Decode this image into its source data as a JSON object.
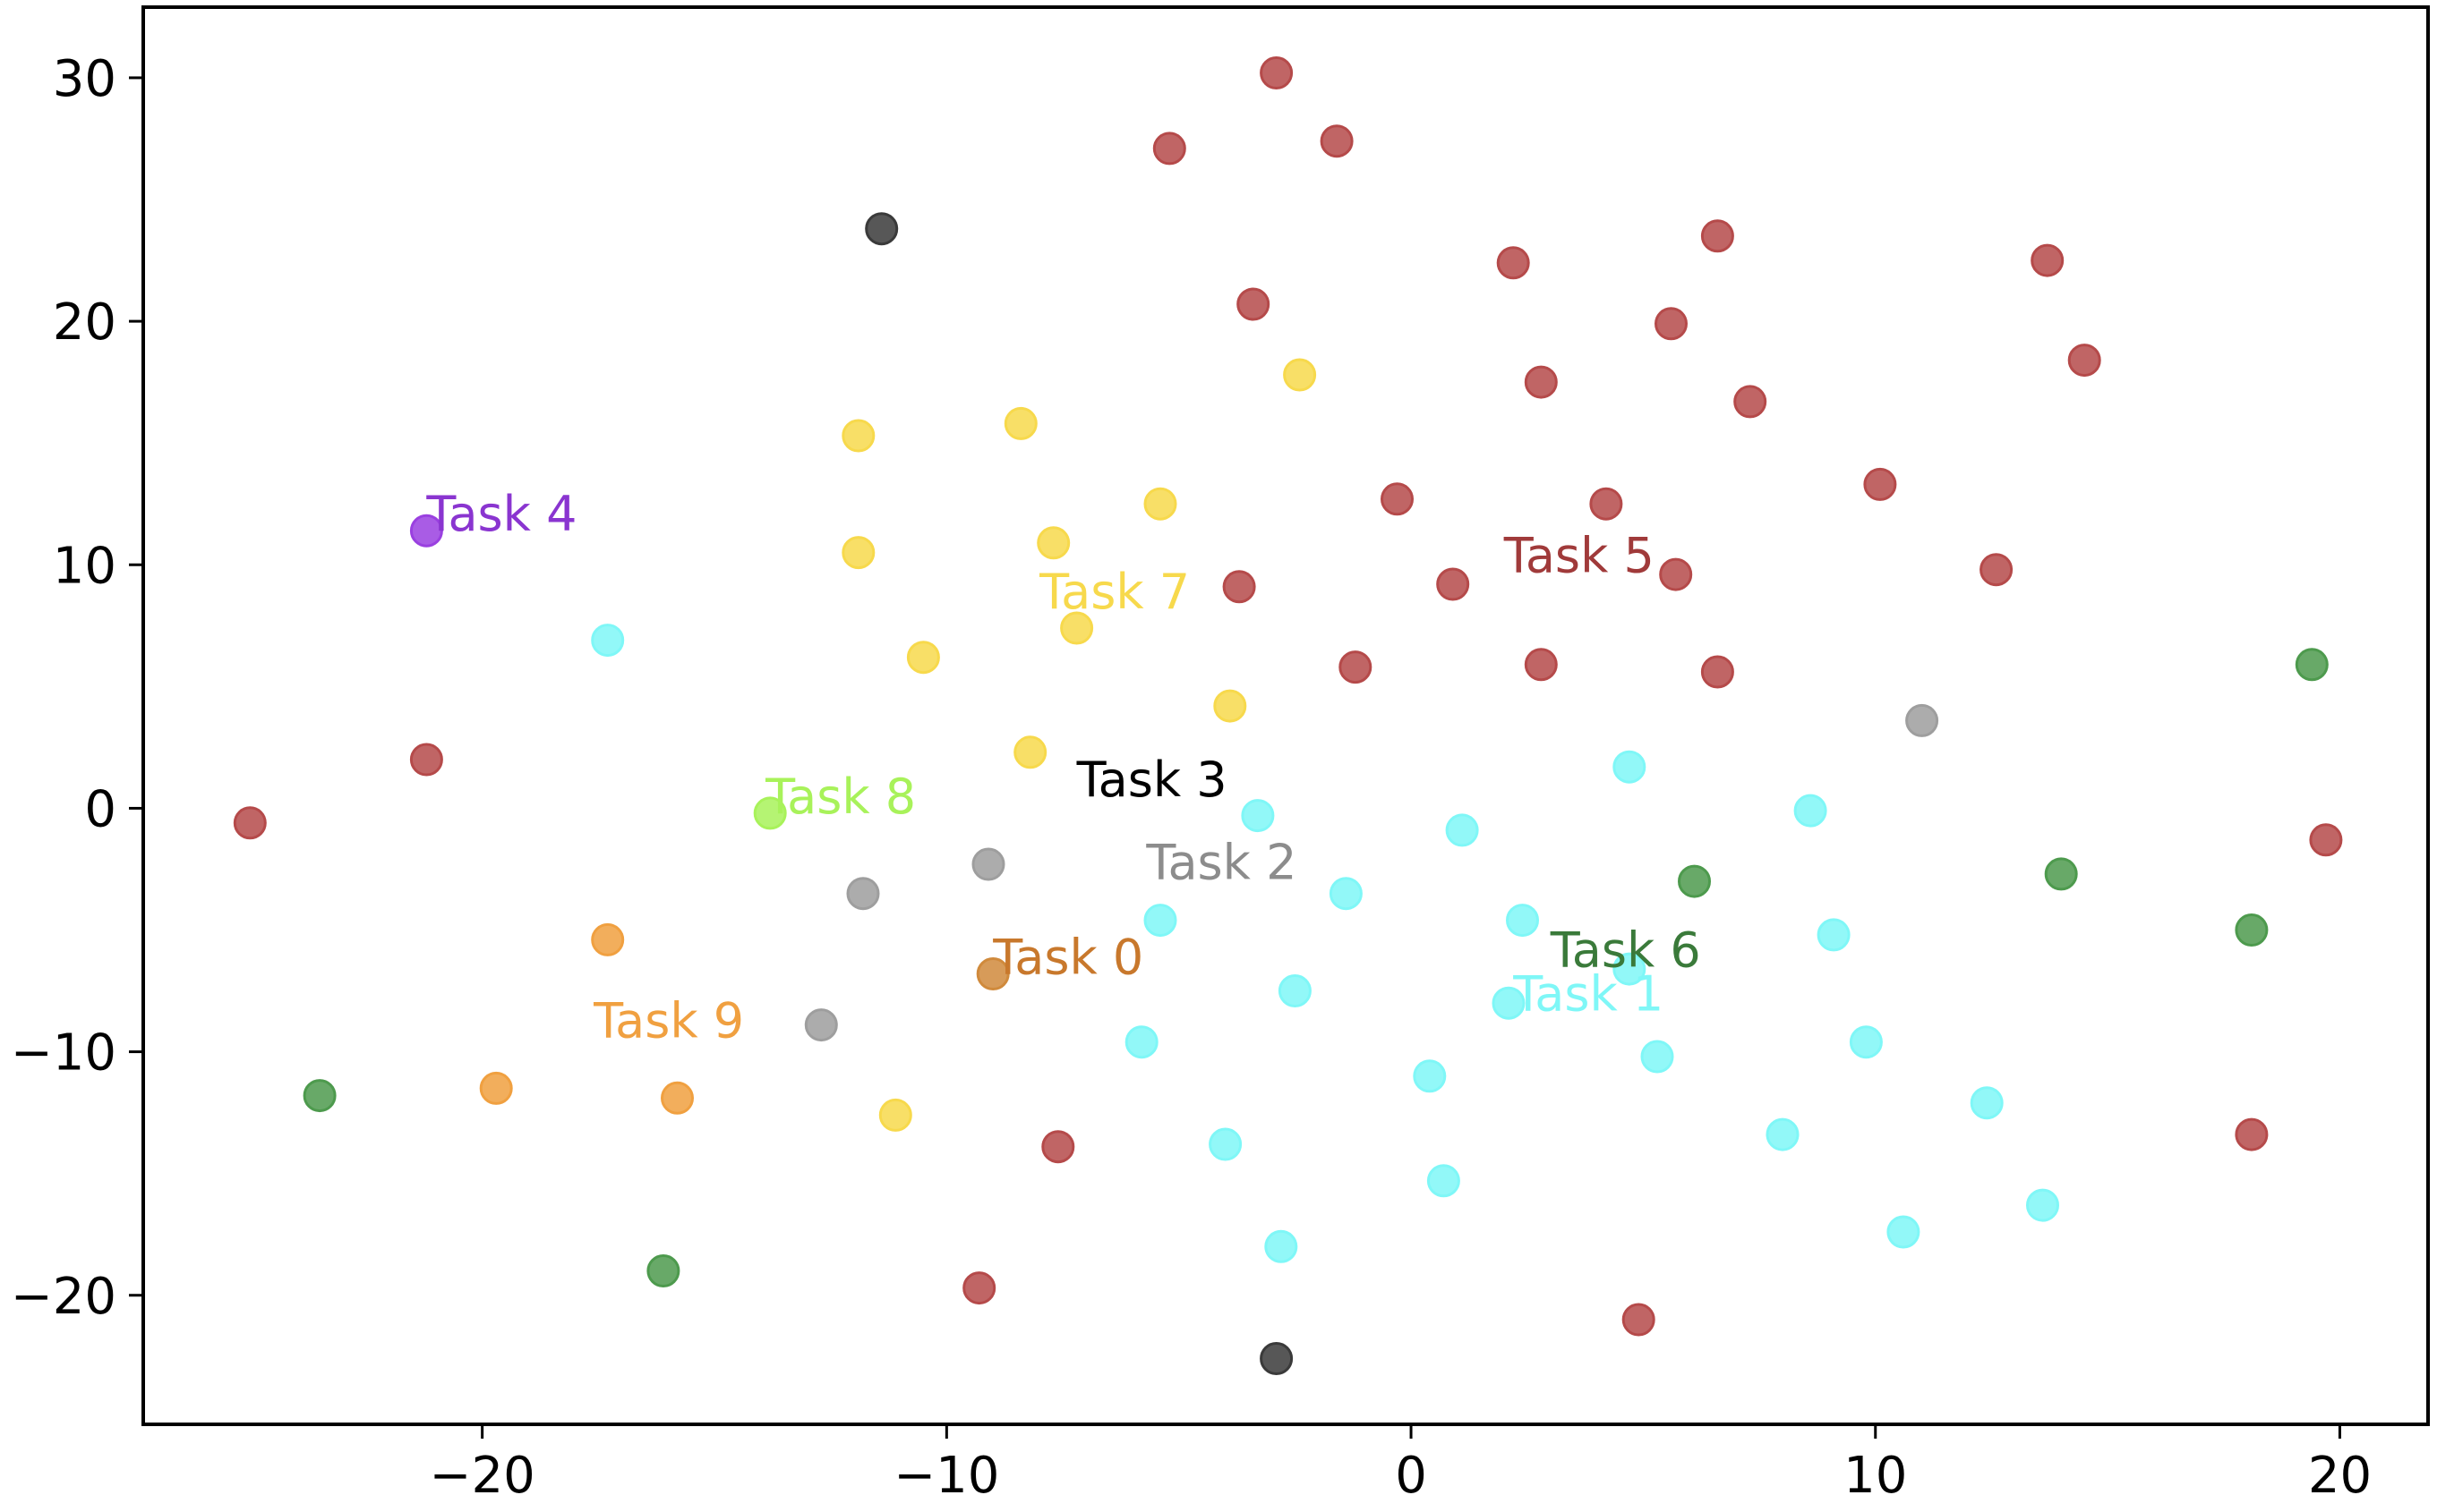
{
  "chart_data": {
    "type": "scatter",
    "title": "",
    "xlabel": "",
    "ylabel": "",
    "xlim": [
      -27.3,
      21.9
    ],
    "ylim": [
      -25.3,
      32.9
    ],
    "xticks": [
      -20,
      -10,
      0,
      10,
      20
    ],
    "yticks": [
      -20,
      -10,
      0,
      10,
      20,
      30
    ],
    "xtick_labels": [
      "−20",
      "−10",
      "0",
      "10",
      "20"
    ],
    "ytick_labels": [
      "−20",
      "−10",
      "0",
      "10",
      "20",
      "30"
    ],
    "grid": false,
    "legend": "none",
    "series": [
      {
        "color": "#d08a3c",
        "points": [
          [
            -9.0,
            -6.8
          ]
        ]
      },
      {
        "color": "#7ff7f7",
        "points": [
          [
            -17.3,
            6.9
          ],
          [
            -3.3,
            -0.3
          ],
          [
            1.1,
            -0.9
          ],
          [
            4.7,
            1.7
          ],
          [
            8.6,
            -0.1
          ],
          [
            -5.4,
            -4.6
          ],
          [
            -1.4,
            -3.5
          ],
          [
            2.4,
            -4.6
          ],
          [
            9.1,
            -5.2
          ],
          [
            -2.5,
            -7.5
          ],
          [
            2.1,
            -8.0
          ],
          [
            4.7,
            -6.6
          ],
          [
            -5.8,
            -9.6
          ],
          [
            0.4,
            -11.0
          ],
          [
            5.3,
            -10.2
          ],
          [
            9.8,
            -9.6
          ],
          [
            12.4,
            -12.1
          ],
          [
            -4.0,
            -13.8
          ],
          [
            0.7,
            -15.3
          ],
          [
            8.0,
            -13.4
          ],
          [
            -2.8,
            -18.0
          ],
          [
            10.6,
            -17.4
          ],
          [
            13.6,
            -16.3
          ]
        ]
      },
      {
        "color": "#9e9e9e",
        "points": [
          [
            -9.1,
            -2.3
          ],
          [
            -11.8,
            -3.5
          ],
          [
            -12.7,
            -8.9
          ],
          [
            11.0,
            3.6
          ]
        ]
      },
      {
        "color": "#3a3a3a",
        "points": [
          [
            -11.4,
            23.8
          ],
          [
            -2.9,
            -22.6
          ]
        ]
      },
      {
        "color": "#9a40e0",
        "points": [
          [
            -21.2,
            11.4
          ]
        ]
      },
      {
        "color": "#b54a4a",
        "points": [
          [
            -2.9,
            30.2
          ],
          [
            -5.2,
            27.1
          ],
          [
            -1.6,
            27.4
          ],
          [
            -3.4,
            20.7
          ],
          [
            2.2,
            22.4
          ],
          [
            6.6,
            23.5
          ],
          [
            13.7,
            22.5
          ],
          [
            5.6,
            19.9
          ],
          [
            2.8,
            17.5
          ],
          [
            7.3,
            16.7
          ],
          [
            14.5,
            18.4
          ],
          [
            10.1,
            13.3
          ],
          [
            -0.3,
            12.7
          ],
          [
            4.2,
            12.5
          ],
          [
            0.9,
            9.2
          ],
          [
            5.7,
            9.6
          ],
          [
            12.6,
            9.8
          ],
          [
            -3.7,
            9.1
          ],
          [
            -1.2,
            5.8
          ],
          [
            2.8,
            5.9
          ],
          [
            6.6,
            5.6
          ],
          [
            -21.2,
            2.0
          ],
          [
            -25.0,
            -0.6
          ],
          [
            19.7,
            -1.3
          ],
          [
            -7.6,
            -13.9
          ],
          [
            18.1,
            -13.4
          ],
          [
            -9.3,
            -19.7
          ],
          [
            4.9,
            -21.0
          ]
        ]
      },
      {
        "color": "#4d9a4d",
        "points": [
          [
            19.4,
            5.9
          ],
          [
            6.1,
            -3.0
          ],
          [
            14.0,
            -2.7
          ],
          [
            18.1,
            -5.0
          ],
          [
            -23.5,
            -11.8
          ],
          [
            -16.1,
            -19.0
          ]
        ]
      },
      {
        "color": "#f7d94c",
        "points": [
          [
            -2.4,
            17.8
          ],
          [
            -8.4,
            15.8
          ],
          [
            -11.9,
            15.3
          ],
          [
            -5.4,
            12.5
          ],
          [
            -7.7,
            10.9
          ],
          [
            -11.9,
            10.5
          ],
          [
            -7.2,
            7.4
          ],
          [
            -10.5,
            6.2
          ],
          [
            -3.9,
            4.2
          ],
          [
            -8.2,
            2.3
          ],
          [
            -11.1,
            -12.6
          ]
        ]
      },
      {
        "color": "#a8f25a",
        "points": [
          [
            -13.8,
            -0.2
          ]
        ]
      },
      {
        "color": "#f0a040",
        "points": [
          [
            -17.3,
            -5.4
          ],
          [
            -19.7,
            -11.5
          ],
          [
            -15.8,
            -11.9
          ]
        ]
      }
    ],
    "annotations": [
      {
        "text": "Task 0",
        "x": -9.0,
        "y": -6.8,
        "color": "#c8782c"
      },
      {
        "text": "Task 1",
        "x": 2.2,
        "y": -8.3,
        "color": "#7ff7f7"
      },
      {
        "text": "Task 2",
        "x": -5.7,
        "y": -2.9,
        "color": "#8c8c8c"
      },
      {
        "text": "Task 3",
        "x": -7.2,
        "y": 0.5,
        "color": "#000000"
      },
      {
        "text": "Task 4",
        "x": -21.2,
        "y": 11.4,
        "color": "#8a35d0"
      },
      {
        "text": "Task 5",
        "x": 2.0,
        "y": 9.7,
        "color": "#a03a3a"
      },
      {
        "text": "Task 6",
        "x": 3.0,
        "y": -6.5,
        "color": "#3a7a3a"
      },
      {
        "text": "Task 7",
        "x": -8.0,
        "y": 8.2,
        "color": "#f7d94c"
      },
      {
        "text": "Task 8",
        "x": -13.9,
        "y": -0.2,
        "color": "#a8f25a"
      },
      {
        "text": "Task 9",
        "x": -17.6,
        "y": -9.4,
        "color": "#f0a040"
      }
    ]
  }
}
